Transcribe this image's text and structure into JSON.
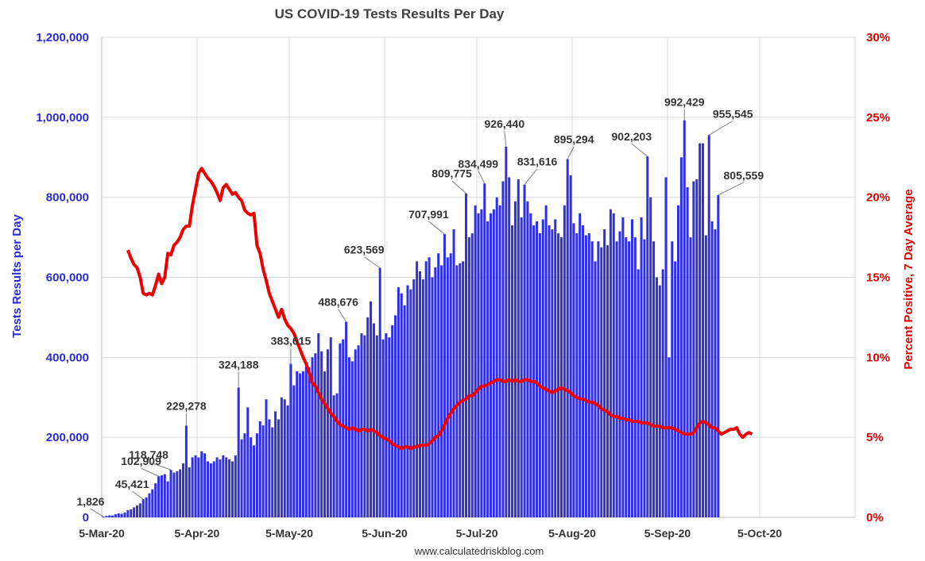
{
  "chart_data": {
    "type": "bar",
    "title": "US COVID-19 Tests Results Per Day",
    "ylabel": "Tests Results per Day",
    "y2label": "Percent Positive, 7 Day Average",
    "source": "www.calculatedriskblog.com",
    "ylim": [
      0,
      1200000
    ],
    "y2lim": [
      0,
      30
    ],
    "yticks": [
      "0",
      "200,000",
      "400,000",
      "600,000",
      "800,000",
      "1,000,000",
      "1,200,000"
    ],
    "y2ticks": [
      "0%",
      "5%",
      "10%",
      "15%",
      "20%",
      "25%",
      "30%"
    ],
    "xticks": [
      "5-Mar-20",
      "5-Apr-20",
      "5-May-20",
      "5-Jun-20",
      "5-Jul-20",
      "5-Aug-20",
      "5-Sep-20",
      "5-Oct-20"
    ],
    "x_range": [
      "2020-03-05",
      "2020-11-05"
    ],
    "grid": true,
    "bars": {
      "name": "Tests Results per Day",
      "start_date": "2020-03-05",
      "values": [
        1826,
        3500,
        5000,
        4500,
        8000,
        10000,
        9000,
        12000,
        18000,
        20000,
        25000,
        30000,
        35000,
        45421,
        50000,
        60000,
        70000,
        85000,
        102909,
        105000,
        108000,
        90000,
        118748,
        112000,
        115000,
        120000,
        135000,
        229278,
        125000,
        150000,
        155000,
        150000,
        165000,
        160000,
        140000,
        135000,
        140000,
        150000,
        145000,
        155000,
        150000,
        145000,
        140000,
        155000,
        324188,
        195000,
        210000,
        275000,
        200000,
        180000,
        210000,
        240000,
        230000,
        295000,
        245000,
        225000,
        265000,
        245000,
        300000,
        295000,
        280000,
        383615,
        330000,
        365000,
        360000,
        365000,
        380000,
        375000,
        400000,
        410000,
        460000,
        415000,
        365000,
        420000,
        450000,
        305000,
        310000,
        435000,
        445000,
        488676,
        400000,
        390000,
        420000,
        430000,
        460000,
        455000,
        500000,
        540000,
        485000,
        455000,
        623569,
        445000,
        460000,
        450000,
        480000,
        505000,
        575000,
        560000,
        530000,
        580000,
        570000,
        595000,
        640000,
        615000,
        595000,
        640000,
        650000,
        600000,
        625000,
        660000,
        630000,
        707991,
        650000,
        660000,
        720000,
        630000,
        635000,
        640000,
        809775,
        700000,
        710000,
        780000,
        760000,
        770000,
        834499,
        740000,
        760000,
        770000,
        800000,
        780000,
        840000,
        926440,
        850000,
        730000,
        790000,
        845000,
        750000,
        831616,
        790000,
        760000,
        730000,
        740000,
        710000,
        745000,
        780000,
        730000,
        720000,
        745000,
        710000,
        700000,
        780000,
        895294,
        855000,
        735000,
        710000,
        760000,
        730000,
        705000,
        710000,
        690000,
        640000,
        690000,
        675000,
        720000,
        680000,
        770000,
        760000,
        690000,
        715000,
        750000,
        700000,
        690000,
        745000,
        700000,
        620000,
        750000,
        695000,
        902203,
        800000,
        690000,
        600000,
        580000,
        620000,
        850000,
        400000,
        690000,
        640000,
        780000,
        900000,
        992429,
        825000,
        700000,
        840000,
        845000,
        935000,
        935000,
        705000,
        955545,
        740000,
        720000,
        805559
      ]
    },
    "line": {
      "name": "Percent Positive, 7 Day Average",
      "start_date": "2020-03-13",
      "values": [
        16.7,
        16.2,
        15.8,
        15.6,
        15.0,
        14.0,
        13.9,
        14.0,
        13.9,
        14.5,
        15.2,
        14.6,
        15.0,
        16.5,
        16.4,
        17.0,
        17.2,
        17.5,
        18.0,
        18.2,
        18.2,
        19.5,
        20.5,
        21.5,
        21.8,
        21.5,
        21.2,
        21.0,
        20.7,
        20.3,
        19.8,
        20.6,
        20.8,
        20.5,
        20.2,
        20.3,
        20.0,
        19.8,
        19.2,
        19.0,
        18.9,
        19.0,
        17.0,
        16.5,
        15.5,
        14.8,
        14.0,
        13.5,
        13.0,
        12.5,
        13.0,
        12.4,
        12.0,
        11.8,
        11.5,
        11.0,
        10.5,
        10.0,
        9.6,
        9.0,
        8.4,
        8.2,
        7.8,
        7.4,
        7.1,
        6.8,
        6.5,
        6.3,
        6.0,
        5.8,
        5.7,
        5.6,
        5.5,
        5.6,
        5.5,
        5.4,
        5.5,
        5.5,
        5.4,
        5.5,
        5.4,
        5.3,
        5.1,
        5.0,
        4.9,
        4.8,
        4.6,
        4.5,
        4.4,
        4.3,
        4.4,
        4.4,
        4.3,
        4.4,
        4.4,
        4.5,
        4.5,
        4.5,
        4.6,
        4.8,
        5.0,
        5.1,
        5.4,
        5.8,
        6.2,
        6.5,
        6.8,
        7.0,
        7.2,
        7.3,
        7.4,
        7.6,
        7.6,
        7.8,
        8.0,
        8.2,
        8.2,
        8.3,
        8.4,
        8.5,
        8.6,
        8.6,
        8.5,
        8.5,
        8.6,
        8.5,
        8.6,
        8.5,
        8.5,
        8.6,
        8.6,
        8.5,
        8.5,
        8.4,
        8.2,
        8.1,
        8.0,
        7.9,
        7.8,
        7.9,
        8.0,
        8.1,
        8.0,
        7.9,
        7.8,
        7.6,
        7.5,
        7.4,
        7.4,
        7.3,
        7.2,
        7.2,
        7.1,
        7.0,
        6.8,
        6.7,
        6.6,
        6.4,
        6.3,
        6.3,
        6.2,
        6.2,
        6.1,
        6.1,
        6.0,
        6.0,
        6.0,
        5.9,
        5.9,
        5.9,
        5.8,
        5.7,
        5.7,
        5.7,
        5.6,
        5.6,
        5.6,
        5.6,
        5.5,
        5.4,
        5.3,
        5.2,
        5.2,
        5.2,
        5.3,
        5.6,
        5.9,
        6.0,
        5.9,
        5.8,
        5.6,
        5.6,
        5.4,
        5.2,
        5.3,
        5.4,
        5.5,
        5.5,
        5.6,
        5.2,
        5.0,
        5.2,
        5.3,
        5.2
      ]
    },
    "annotations": [
      {
        "label": "1,826",
        "value": 1826
      },
      {
        "label": "45,421",
        "value": 45421
      },
      {
        "label": "102,909",
        "value": 102909
      },
      {
        "label": "118,748",
        "value": 118748
      },
      {
        "label": "229,278",
        "value": 229278
      },
      {
        "label": "324,188",
        "value": 324188
      },
      {
        "label": "383,615",
        "value": 383615
      },
      {
        "label": "488,676",
        "value": 488676
      },
      {
        "label": "623,569",
        "value": 623569
      },
      {
        "label": "707,991",
        "value": 707991
      },
      {
        "label": "809,775",
        "value": 809775
      },
      {
        "label": "834,499",
        "value": 834499
      },
      {
        "label": "926,440",
        "value": 926440
      },
      {
        "label": "831,616",
        "value": 831616
      },
      {
        "label": "895,294",
        "value": 895294
      },
      {
        "label": "902,203",
        "value": 902203
      },
      {
        "label": "992,429",
        "value": 992429
      },
      {
        "label": "955,545",
        "value": 955545
      },
      {
        "label": "805,559",
        "value": 805559
      }
    ],
    "colors": {
      "bars": "#3030e0",
      "line": "#ee0000",
      "left_axis": "#2b2bd6",
      "right_axis": "#e00000"
    }
  }
}
